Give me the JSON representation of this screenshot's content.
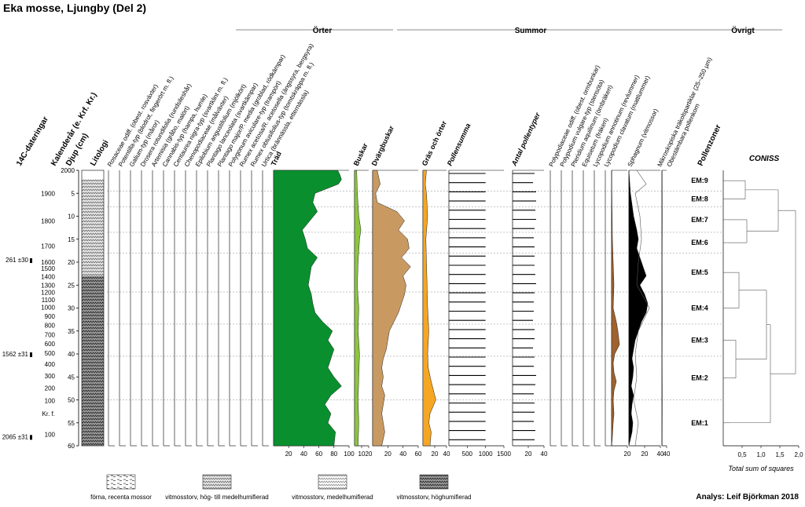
{
  "title": "Eka mosse, Ljungby (Del 2)",
  "credit": "Analys: Leif Björkman 2018",
  "chart_data": {
    "type": "area",
    "group_headers": [
      "Örter",
      "Summor",
      "Övrigt"
    ],
    "left_axes": {
      "dates_label": "14C-dateringar",
      "calendar_label": "Kalenderår (e. Krf. Kr.)",
      "depth_label": "Djup (cm)",
      "lithology_label": "Litologi",
      "depth_ticks": [
        0,
        5,
        10,
        15,
        20,
        25,
        30,
        35,
        40,
        45,
        50,
        55,
        60
      ],
      "depth_tick_labels": [
        "2000",
        "5",
        "10",
        "15",
        "20",
        "25",
        "30",
        "35",
        "40",
        "45",
        "50",
        "55",
        "60"
      ],
      "depth_range": [
        0,
        60
      ],
      "calendar_ticks": [
        {
          "label": "1900",
          "depth": 5
        },
        {
          "label": "1800",
          "depth": 11
        },
        {
          "label": "1700",
          "depth": 16.5
        },
        {
          "label": "1600",
          "depth": 20
        },
        {
          "label": "1500",
          "depth": 21.4
        },
        {
          "label": "1400",
          "depth": 23.2
        },
        {
          "label": "1300",
          "depth": 25
        },
        {
          "label": "1200",
          "depth": 26.6
        },
        {
          "label": "1100",
          "depth": 28.2
        },
        {
          "label": "1000",
          "depth": 29.8
        },
        {
          "label": "900",
          "depth": 31.8
        },
        {
          "label": "800",
          "depth": 33.8
        },
        {
          "label": "700",
          "depth": 35.8
        },
        {
          "label": "600",
          "depth": 37.8
        },
        {
          "label": "500",
          "depth": 39.8
        },
        {
          "label": "400",
          "depth": 42.2
        },
        {
          "label": "300",
          "depth": 44.8
        },
        {
          "label": "200",
          "depth": 47.4
        },
        {
          "label": "100",
          "depth": 50.2
        },
        {
          "label": "Kr. f.",
          "depth": 53
        },
        {
          "label": "100",
          "depth": 57.5
        }
      ],
      "dates": [
        {
          "label": "261 ±30",
          "depth": 19.5
        },
        {
          "label": "1562 ±31",
          "depth": 40
        },
        {
          "label": "2065 ±31",
          "depth": 58
        }
      ]
    },
    "herb_taxa": [
      "Rosaceae odiff. (obest. rosväxter)",
      "Potentilla-typ (blodrot, fingerört m. fl.)",
      "Galium-typ (måror)",
      "Drosera rotundifolia (rundsileshår)",
      "Artemisia (gråbo, malört)",
      "Cannabis-typ (hampa, humle)",
      "Centaurea nigra-typ (svartklint m. fl.)",
      "Chenopodiaceae (målväxter)",
      "Epilobium angustifolium (mjölkört)",
      "Plantago lanceolata (svartkämpar)",
      "Plantago major/P. media (groblad, rödkämpar)",
      "Polygonum aviculare-typ (trampört)",
      "Rumex acetosa/R. acetosella (ängssyra, bergsyra)",
      "Rumex obtusifolius-typ (tomtskräppa m. fl.)",
      "Urtica (brännässla, etternässla)"
    ],
    "sum_series_labels": [
      "Träd",
      "Buskar",
      "Dvärgbuskar",
      "Gräs och örter",
      "Pollensumma",
      "Antal pollentyper"
    ],
    "other_taxa": [
      "Polypodiaceae odiff. (obest. ormbunkar)",
      "Polypodium vulgare-typ (stensöta)",
      "Pteridium aquilinum (örnbräken)",
      "Equisetum (fräken)",
      "Lycopodium annotinum (revlummer)",
      "Lycopodium clavatum (mattlummer)",
      "Sphagnum (vitmossor)",
      "Mikroskopiska träkolspartiklar (25–250 µm)",
      "Obestämbara pollenkorn"
    ],
    "zones_label": "Pollenzoner",
    "zones": [
      {
        "name": "EM:9",
        "top": 0,
        "bottom": 4.5
      },
      {
        "name": "EM:8",
        "top": 4.5,
        "bottom": 8
      },
      {
        "name": "EM:7",
        "top": 8,
        "bottom": 13.5
      },
      {
        "name": "EM:6",
        "top": 13.5,
        "bottom": 18
      },
      {
        "name": "EM:5",
        "top": 18,
        "bottom": 26.5
      },
      {
        "name": "EM:4",
        "top": 26.5,
        "bottom": 33.5
      },
      {
        "name": "EM:3",
        "top": 33.5,
        "bottom": 40.5
      },
      {
        "name": "EM:2",
        "top": 40.5,
        "bottom": 50
      },
      {
        "name": "EM:1",
        "top": 50,
        "bottom": 60
      }
    ],
    "coniss": {
      "title": "CONISS",
      "xlabel": "Total sum of squares",
      "x_ticks": [
        "0,5",
        "1,0",
        "1,5",
        "2,0"
      ],
      "x_range": [
        0,
        2.0
      ]
    },
    "series": [
      {
        "name": "Träd",
        "color": "#0a8f2e",
        "xlim": [
          0,
          100
        ],
        "x_ticks": [
          "20",
          "40",
          "60",
          "80",
          "100"
        ],
        "depth": [
          0,
          1,
          2,
          3,
          5,
          7,
          9,
          11,
          13,
          15,
          17,
          19,
          21,
          23,
          25,
          27,
          29,
          31,
          33,
          35,
          37,
          39,
          41,
          43,
          45,
          47,
          49,
          51,
          53,
          55,
          57,
          60
        ],
        "values": [
          85,
          88,
          90,
          86,
          55,
          52,
          58,
          48,
          38,
          42,
          45,
          58,
          50,
          48,
          46,
          50,
          52,
          55,
          65,
          78,
          72,
          80,
          76,
          72,
          80,
          90,
          76,
          68,
          76,
          72,
          82,
          80
        ]
      },
      {
        "name": "Buskar",
        "color": "#8cc63f",
        "xlim": [
          0,
          20
        ],
        "x_ticks": [
          "10",
          "20"
        ],
        "depth": [
          0,
          5,
          10,
          13,
          15,
          20,
          25,
          30,
          35,
          40,
          45,
          50,
          55,
          60
        ],
        "values": [
          3,
          4,
          6,
          9,
          7,
          5,
          4,
          6,
          5,
          7,
          6,
          5,
          6,
          5
        ]
      },
      {
        "name": "Dvärgbuskar",
        "color": "#c89a62",
        "xlim": [
          0,
          60
        ],
        "x_ticks": [
          "20",
          "40",
          "60"
        ],
        "depth": [
          0,
          3,
          5,
          7,
          9,
          11,
          13,
          15,
          17,
          19,
          21,
          23,
          25,
          27,
          29,
          31,
          33,
          35,
          37,
          39,
          41,
          43,
          45,
          47,
          49,
          51,
          53,
          55,
          57,
          60
        ],
        "values": [
          6,
          10,
          4,
          6,
          32,
          42,
          34,
          46,
          48,
          38,
          50,
          40,
          44,
          42,
          38,
          34,
          28,
          22,
          20,
          18,
          14,
          12,
          14,
          12,
          16,
          14,
          12,
          14,
          16,
          12
        ]
      },
      {
        "name": "Gräs och örter",
        "color": "#f5a623",
        "xlim": [
          0,
          40
        ],
        "x_ticks": [
          "20",
          "40"
        ],
        "depth": [
          0,
          3,
          5,
          10,
          15,
          20,
          25,
          30,
          35,
          40,
          43,
          46,
          48,
          50,
          53,
          55,
          57,
          60
        ],
        "values": [
          6,
          4,
          6,
          8,
          5,
          6,
          7,
          8,
          10,
          8,
          9,
          14,
          18,
          22,
          12,
          10,
          14,
          12
        ]
      },
      {
        "name": "Pollensumma",
        "color": "#000000",
        "xlim": [
          0,
          1500
        ],
        "x_ticks": [
          "500",
          "1000",
          "1500"
        ],
        "depth": [
          0,
          2,
          4,
          6,
          8,
          10,
          12,
          14,
          16,
          18,
          20,
          22,
          24,
          26,
          28,
          30,
          32,
          34,
          36,
          38,
          40,
          42,
          44,
          46,
          48,
          50,
          52,
          54,
          56,
          58
        ],
        "values": [
          1000,
          1000,
          1000,
          1000,
          1000,
          1000,
          1000,
          1000,
          1000,
          1000,
          1000,
          1000,
          1000,
          1000,
          1000,
          1000,
          1000,
          1000,
          1000,
          1000,
          1000,
          1000,
          1000,
          1000,
          1000,
          1000,
          1000,
          1000,
          1000,
          1000
        ]
      },
      {
        "name": "Antal pollentyper",
        "color": "#000000",
        "xlim": [
          0,
          40
        ],
        "x_ticks": [
          "20",
          "40"
        ],
        "depth": [
          0,
          2,
          4,
          6,
          8,
          10,
          12,
          14,
          16,
          18,
          20,
          22,
          24,
          26,
          28,
          30,
          32,
          34,
          36,
          38,
          40,
          42,
          44,
          46,
          48,
          50,
          52,
          54,
          56,
          58
        ],
        "values": [
          28,
          26,
          30,
          30,
          29,
          30,
          28,
          27,
          28,
          28,
          28,
          29,
          30,
          28,
          27,
          27,
          26,
          28,
          28,
          26,
          28,
          27,
          30,
          29,
          27,
          28,
          28,
          27,
          29,
          28
        ]
      },
      {
        "name": "Equisetum",
        "color": "#a0622d",
        "xlim": [
          0,
          20
        ],
        "x_ticks": [
          "20"
        ],
        "depth": [
          0,
          15,
          20,
          25,
          30,
          33,
          35,
          38,
          40,
          42,
          44,
          46,
          48,
          50,
          53,
          55,
          58,
          60
        ],
        "values": [
          0,
          1,
          2,
          3,
          2,
          6,
          8,
          10,
          4,
          2,
          3,
          6,
          3,
          2,
          3,
          2,
          1,
          0
        ]
      },
      {
        "name": "Sphagnum",
        "color": "#000000",
        "xlim": [
          0,
          40
        ],
        "x_ticks": [
          "20",
          "40"
        ],
        "depth": [
          0,
          5,
          10,
          13,
          15,
          17,
          19,
          21,
          23,
          25,
          27,
          29,
          31,
          33,
          35,
          37,
          39,
          41,
          43,
          45,
          47,
          49,
          51,
          53,
          55,
          57,
          60
        ],
        "values": [
          0,
          2,
          6,
          10,
          12,
          10,
          14,
          18,
          22,
          14,
          20,
          24,
          22,
          16,
          12,
          8,
          6,
          4,
          6,
          5,
          3,
          6,
          4,
          3,
          5,
          4,
          0
        ]
      },
      {
        "name": "Mikroskopiska träkolspartiklar (25–250 µm)",
        "color": "#555555",
        "xlim": [
          0,
          40
        ],
        "x_ticks": [
          "20",
          "40"
        ],
        "depth": [
          0,
          3,
          5,
          10,
          15,
          20,
          25,
          28,
          30,
          35,
          40,
          45,
          50,
          55,
          60
        ],
        "values": [
          10,
          22,
          8,
          14,
          16,
          12,
          10,
          20,
          26,
          12,
          8,
          10,
          6,
          12,
          8
        ]
      },
      {
        "name": "Obestämbara pollenkorn",
        "color": "#7a2e8f",
        "xlim": [
          0,
          40
        ],
        "x_ticks": [
          "40"
        ],
        "depth": [
          0,
          10,
          20,
          30,
          40,
          50,
          60
        ],
        "values": [
          2,
          3,
          2,
          3,
          2,
          3,
          2
        ]
      }
    ]
  }
}
